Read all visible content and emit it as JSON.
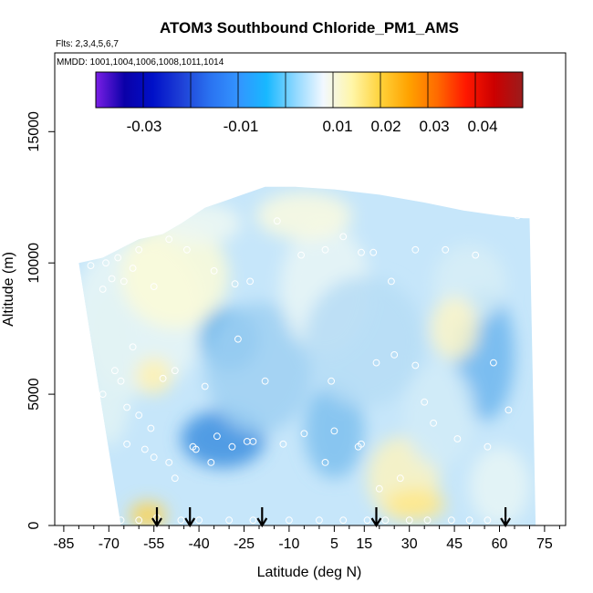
{
  "chart_data": {
    "type": "heatmap",
    "title": "ATOM3 Southbound Chloride_PM1_AMS",
    "flights_note": "Flts: 2,3,4,5,6,7",
    "mmdd_note": "MMDD: 1001,1004,1006,1008,1011,1014",
    "xlabel": "Latitude (deg N)",
    "ylabel": "Altitude (m)",
    "xlim": [
      -88,
      82
    ],
    "ylim": [
      0,
      18000
    ],
    "x_ticks": [
      -85,
      -70,
      -55,
      -40,
      -25,
      -10,
      5,
      15,
      30,
      45,
      60,
      75
    ],
    "x_tick_labels": [
      "-85",
      "-70",
      "-55",
      "-40",
      "-25",
      "-10",
      "5",
      "15",
      "30",
      "45",
      "60",
      "75"
    ],
    "x_minor_ticks": [
      -80,
      -75,
      -65,
      -60,
      -50,
      -45,
      -35,
      -30,
      -20,
      -15,
      -5,
      0,
      10,
      20,
      25,
      35,
      40,
      50,
      55,
      65,
      70,
      80
    ],
    "y_ticks": [
      0,
      5000,
      10000,
      15000
    ],
    "y_tick_labels": [
      "0",
      "5000",
      "10000",
      "15000"
    ],
    "colorbar": {
      "colors": [
        "#7a1fe6",
        "#0b00a8",
        "#0010c8",
        "#1e3fd6",
        "#2a72f0",
        "#3394ff",
        "#18b8ff",
        "#8fd8ff",
        "#f2f8ff",
        "#fff6a8",
        "#ffd23a",
        "#ffa200",
        "#ff6a00",
        "#ff1800",
        "#cc0000",
        "#9b1c1c"
      ],
      "tick_values": [
        -0.03,
        -0.01,
        0.01,
        0.02,
        0.03,
        0.04
      ],
      "tick_labels": [
        "-0.03",
        "-0.01",
        "0.01",
        "0.02",
        "0.03",
        "0.04"
      ]
    },
    "arrow_latitudes": [
      -54,
      -43,
      -19,
      19,
      62
    ],
    "curtain_top": [
      [
        -80,
        10000
      ],
      [
        -72,
        10200
      ],
      [
        -60,
        10900
      ],
      [
        -52,
        11100
      ],
      [
        -46,
        11500
      ],
      [
        -38,
        12100
      ],
      [
        -28,
        12500
      ],
      [
        -18,
        12900
      ],
      [
        -8,
        12900
      ],
      [
        5,
        12800
      ],
      [
        20,
        12600
      ],
      [
        35,
        12300
      ],
      [
        48,
        12000
      ],
      [
        60,
        11800
      ],
      [
        68,
        11700
      ],
      [
        70,
        11700
      ]
    ],
    "observations": [
      [
        -76,
        9900
      ],
      [
        -72,
        9000
      ],
      [
        -71,
        10000
      ],
      [
        -69,
        9400
      ],
      [
        -67,
        10200
      ],
      [
        -65,
        9300
      ],
      [
        -62,
        9800
      ],
      [
        -60,
        10500
      ],
      [
        -55,
        9100
      ],
      [
        -50,
        10900
      ],
      [
        -44,
        10500
      ],
      [
        -35,
        9700
      ],
      [
        -28,
        9200
      ],
      [
        -23,
        9300
      ],
      [
        -14,
        11600
      ],
      [
        -6,
        10300
      ],
      [
        2,
        10500
      ],
      [
        8,
        11000
      ],
      [
        14,
        10400
      ],
      [
        18,
        10400
      ],
      [
        24,
        9300
      ],
      [
        32,
        10500
      ],
      [
        42,
        10500
      ],
      [
        52,
        10300
      ],
      [
        66,
        11800
      ],
      [
        -72,
        5000
      ],
      [
        -68,
        5900
      ],
      [
        -66,
        5500
      ],
      [
        -64,
        4500
      ],
      [
        -62,
        6800
      ],
      [
        -60,
        4200
      ],
      [
        -56,
        3700
      ],
      [
        -52,
        5600
      ],
      [
        -48,
        5900
      ],
      [
        -42,
        3000
      ],
      [
        -38,
        5300
      ],
      [
        -34,
        3400
      ],
      [
        -27,
        7100
      ],
      [
        -22,
        3200
      ],
      [
        -18,
        5500
      ],
      [
        -5,
        3500
      ],
      [
        4,
        5500
      ],
      [
        5,
        3600
      ],
      [
        13,
        3000
      ],
      [
        19,
        6200
      ],
      [
        25,
        6500
      ],
      [
        32,
        6100
      ],
      [
        35,
        4700
      ],
      [
        38,
        3900
      ],
      [
        46,
        3300
      ],
      [
        56,
        3000
      ],
      [
        58,
        6200
      ],
      [
        63,
        4400
      ],
      [
        -64,
        3100
      ],
      [
        -58,
        2900
      ],
      [
        -55,
        2600
      ],
      [
        -50,
        2400
      ],
      [
        -48,
        1800
      ],
      [
        -41,
        2900
      ],
      [
        -36,
        2400
      ],
      [
        -29,
        3000
      ],
      [
        -24,
        3200
      ],
      [
        -12,
        3100
      ],
      [
        2,
        2400
      ],
      [
        14,
        3100
      ],
      [
        20,
        1400
      ],
      [
        27,
        1800
      ],
      [
        -66,
        200
      ],
      [
        -60,
        200
      ],
      [
        -54,
        300
      ],
      [
        -46,
        200
      ],
      [
        -40,
        200
      ],
      [
        -30,
        200
      ],
      [
        -22,
        200
      ],
      [
        -10,
        200
      ],
      [
        0,
        200
      ],
      [
        8,
        200
      ],
      [
        16,
        200
      ],
      [
        22,
        200
      ],
      [
        30,
        200
      ],
      [
        36,
        200
      ],
      [
        44,
        200
      ],
      [
        50,
        200
      ],
      [
        56,
        200
      ],
      [
        62,
        200
      ]
    ]
  }
}
